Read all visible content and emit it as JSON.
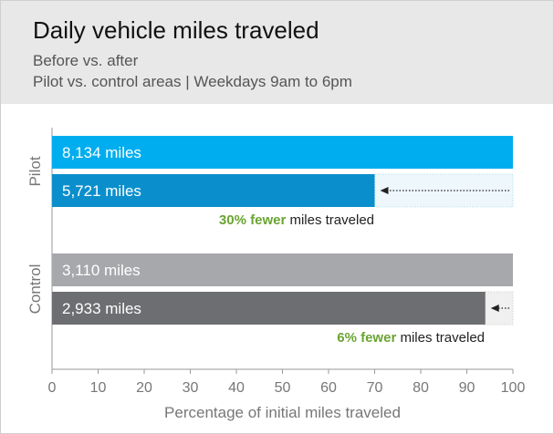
{
  "chart_data": {
    "type": "bar",
    "orientation": "horizontal",
    "title": "Daily vehicle miles traveled",
    "subtitle": "Before vs. after",
    "subtitle2": "Pilot vs. control areas  |  Weekdays 9am to 6pm",
    "xlabel": "Percentage of initial miles traveled",
    "xlim": [
      0,
      100
    ],
    "xticks": [
      "0",
      "10",
      "20",
      "30",
      "40",
      "50",
      "60",
      "70",
      "80",
      "90",
      "100"
    ],
    "groups": [
      {
        "name": "Pilot",
        "bars": [
          {
            "label": "8,134 miles",
            "value": 100,
            "color": "#00adee"
          },
          {
            "label": "5,721 miles",
            "value": 70,
            "color": "#0b8fcc"
          }
        ],
        "annotation_highlight": "30% fewer",
        "annotation_rest": " miles traveled",
        "highlight_color": "#6aa432"
      },
      {
        "name": "Control",
        "bars": [
          {
            "label": "3,110 miles",
            "value": 100,
            "color": "#a7a8ab"
          },
          {
            "label": "2,933 miles",
            "value": 94,
            "color": "#6d6e71"
          }
        ],
        "annotation_highlight": "6% fewer",
        "annotation_rest": " miles traveled",
        "highlight_color": "#6aa432"
      }
    ]
  }
}
